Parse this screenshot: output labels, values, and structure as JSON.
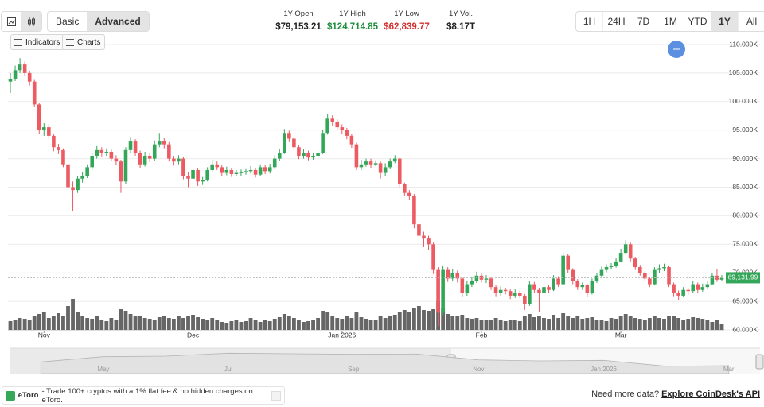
{
  "toolbar": {
    "modes": [
      "Basic",
      "Advanced"
    ],
    "active_mode": "Advanced",
    "buttons": [
      "Indicators",
      "Charts"
    ],
    "ranges": [
      "1H",
      "24H",
      "7D",
      "1M",
      "YTD",
      "1Y",
      "All"
    ],
    "active_range": "1Y"
  },
  "stats": [
    {
      "label": "1Y Open",
      "value": "$79,153.21",
      "color": "#222222"
    },
    {
      "label": "1Y High",
      "value": "$124,714.85",
      "color": "#1e8e3e"
    },
    {
      "label": "1Y Low",
      "value": "$62,839.77",
      "color": "#d32f2f"
    },
    {
      "label": "1Y Vol.",
      "value": "$8.17T",
      "color": "#222222"
    }
  ],
  "chart_data": {
    "type": "candlestick",
    "categories": [
      null,
      null,
      null,
      null,
      null,
      null,
      null,
      "Nov",
      null,
      null,
      null,
      null,
      null,
      null,
      null,
      null,
      null,
      null,
      null,
      null,
      null,
      null,
      null,
      null,
      null,
      null,
      null,
      null,
      null,
      null,
      null,
      null,
      null,
      null,
      null,
      null,
      null,
      null,
      "Dec",
      null,
      null,
      null,
      null,
      null,
      null,
      null,
      null,
      null,
      null,
      null,
      null,
      null,
      null,
      null,
      null,
      null,
      null,
      null,
      null,
      null,
      null,
      null,
      null,
      null,
      null,
      null,
      null,
      null,
      null,
      "Jan 2026",
      null,
      null,
      null,
      null,
      null,
      null,
      null,
      null,
      null,
      null,
      null,
      null,
      null,
      null,
      null,
      null,
      null,
      null,
      null,
      null,
      null,
      null,
      null,
      null,
      null,
      null,
      null,
      null,
      "Feb",
      null,
      null,
      null,
      null,
      null,
      null,
      null,
      null,
      null,
      null,
      null,
      null,
      null,
      null,
      null,
      null,
      null,
      null,
      null,
      null,
      null,
      null,
      null,
      null,
      null,
      null,
      null,
      null,
      "Mar",
      null,
      null,
      null,
      null,
      null,
      null,
      null,
      null,
      null,
      null,
      null,
      null,
      null,
      null,
      null,
      null,
      null,
      null,
      null,
      null,
      null
    ],
    "open": [
      103500,
      104000,
      105500,
      106500,
      105000,
      103500,
      99500,
      95000,
      95500,
      94000,
      92000,
      91500,
      89000,
      85000,
      84500,
      86500,
      87000,
      88500,
      90500,
      91500,
      91000,
      91200,
      90000,
      89500,
      86000,
      91500,
      93000,
      91000,
      89000,
      90500,
      90000,
      92500,
      93000,
      92500,
      90000,
      89500,
      90000,
      87000,
      86500,
      88000,
      86000,
      86300,
      88000,
      89000,
      88500,
      87500,
      88000,
      87300,
      87500,
      87600,
      87800,
      88000,
      87200,
      88500,
      87800,
      88500,
      90000,
      91000,
      94500,
      93500,
      92000,
      90500,
      91000,
      90200,
      90500,
      91000,
      94500,
      97000,
      96500,
      95500,
      95000,
      94000,
      92500,
      88500,
      89000,
      89500,
      89000,
      89200,
      87500,
      88500,
      89500,
      90000,
      85500,
      84000,
      83500,
      78500,
      76500,
      76000,
      75000,
      70500,
      63000,
      70500,
      69000,
      70000,
      69000,
      66500,
      68000,
      68500,
      69500,
      68800,
      69000,
      67500,
      66500,
      67000,
      66800,
      66000,
      66500,
      66000,
      64500,
      68000,
      67000,
      66500,
      67500,
      67000,
      69000,
      68000,
      73000,
      70500,
      68500,
      67500,
      67800,
      66500,
      68500,
      69500,
      70500,
      71000,
      71200,
      72000,
      73500,
      75000,
      72500,
      71000,
      70000,
      69000,
      68000,
      70500,
      70800,
      71000,
      68000,
      66500,
      66000,
      67000,
      66800,
      68000,
      67000,
      67500,
      68000,
      69500,
      68800
    ],
    "high": [
      105000,
      106300,
      107600,
      107000,
      105400,
      103800,
      99800,
      96200,
      96000,
      94400,
      92600,
      91800,
      89300,
      86000,
      87000,
      87600,
      89000,
      91000,
      92200,
      92000,
      91800,
      91600,
      90600,
      89800,
      92000,
      93800,
      93400,
      91400,
      91200,
      91000,
      93200,
      94500,
      93600,
      92900,
      90500,
      90600,
      90300,
      87600,
      88600,
      88400,
      86800,
      88500,
      89800,
      89500,
      88900,
      88600,
      88400,
      88000,
      88100,
      88300,
      88700,
      88400,
      89000,
      88900,
      89100,
      90600,
      91700,
      95200,
      94900,
      93900,
      92400,
      91600,
      91400,
      91000,
      91500,
      95000,
      97800,
      97600,
      96900,
      96000,
      95400,
      94400,
      92800,
      89800,
      90000,
      90000,
      89700,
      89500,
      89200,
      90000,
      90600,
      90300,
      85800,
      84500,
      83800,
      78900,
      77200,
      76500,
      75300,
      71000,
      71300,
      71000,
      70600,
      70400,
      69300,
      68600,
      69200,
      70200,
      69900,
      69600,
      69300,
      67800,
      67600,
      67400,
      67100,
      67100,
      66900,
      66300,
      68500,
      68400,
      67400,
      68000,
      67900,
      69600,
      69400,
      73600,
      73300,
      70800,
      68900,
      68300,
      68100,
      69000,
      70000,
      71100,
      71500,
      71700,
      72600,
      74200,
      75700,
      75300,
      72800,
      71400,
      70300,
      69300,
      71000,
      71500,
      71600,
      71300,
      68300,
      66900,
      67500,
      67400,
      68500,
      68300,
      68100,
      68600,
      70000,
      70600,
      69600
    ],
    "low": [
      101500,
      103600,
      105000,
      104500,
      102800,
      99000,
      94400,
      94000,
      93500,
      91300,
      90800,
      88500,
      84200,
      80800,
      84000,
      85800,
      86600,
      88000,
      90000,
      90400,
      90500,
      89600,
      88900,
      84000,
      85600,
      91000,
      90500,
      88400,
      88600,
      89400,
      89600,
      92000,
      91800,
      89500,
      88800,
      89000,
      86400,
      85000,
      86000,
      85200,
      85400,
      86000,
      87600,
      88000,
      87000,
      87100,
      86800,
      86900,
      87000,
      87200,
      87400,
      86700,
      86900,
      87300,
      87400,
      88200,
      89600,
      90800,
      92900,
      91400,
      89900,
      90000,
      89700,
      89800,
      90100,
      90800,
      94200,
      95800,
      95000,
      94300,
      93400,
      91900,
      88000,
      88000,
      88600,
      88400,
      88700,
      86500,
      87000,
      88200,
      89200,
      85000,
      83400,
      82800,
      77800,
      75800,
      74500,
      74000,
      69800,
      60700,
      62500,
      68400,
      68500,
      68300,
      65800,
      66000,
      67500,
      68200,
      68300,
      68200,
      67000,
      65900,
      66000,
      66200,
      65400,
      65600,
      65500,
      63500,
      64200,
      66500,
      63200,
      66100,
      66500,
      66800,
      67500,
      67800,
      70000,
      68000,
      67000,
      67000,
      65800,
      66200,
      68200,
      69200,
      70100,
      70600,
      70900,
      71800,
      73200,
      72000,
      70500,
      69500,
      68500,
      67500,
      67800,
      70000,
      70300,
      67500,
      65900,
      65200,
      65700,
      66200,
      66500,
      66400,
      66700,
      67200,
      67800,
      68400,
      68500
    ],
    "close": [
      104000,
      105500,
      106500,
      105000,
      103500,
      99500,
      95000,
      95500,
      94000,
      92000,
      91500,
      89000,
      85000,
      84500,
      86500,
      87000,
      88500,
      90500,
      91500,
      91000,
      91200,
      90000,
      89500,
      86000,
      91500,
      93000,
      91000,
      89000,
      90500,
      90000,
      92500,
      93000,
      92500,
      90000,
      89500,
      90000,
      87000,
      86500,
      88000,
      86000,
      86300,
      88000,
      89000,
      88500,
      87500,
      88000,
      87300,
      87500,
      87600,
      87800,
      88000,
      87200,
      88500,
      87800,
      88500,
      90000,
      91000,
      94500,
      93500,
      92000,
      90500,
      91000,
      90200,
      90500,
      91000,
      94500,
      97000,
      96500,
      95500,
      95000,
      94000,
      92500,
      88500,
      89000,
      89500,
      89000,
      89200,
      87500,
      88500,
      89500,
      90000,
      85500,
      84000,
      83500,
      78500,
      76500,
      76000,
      75000,
      70500,
      63000,
      70500,
      69000,
      70000,
      69000,
      66500,
      68000,
      68500,
      69500,
      68800,
      69000,
      67500,
      66500,
      67000,
      66800,
      66000,
      66500,
      66000,
      64500,
      68000,
      67000,
      66500,
      67500,
      67000,
      69000,
      68000,
      73000,
      70500,
      68500,
      67500,
      67800,
      66500,
      68500,
      69500,
      70500,
      71000,
      71200,
      72000,
      73500,
      75000,
      72500,
      71000,
      70000,
      69000,
      68000,
      70500,
      70800,
      71000,
      68000,
      66500,
      66000,
      67000,
      66800,
      68000,
      67000,
      67500,
      68000,
      69500,
      68800,
      69131.99
    ],
    "volume": [
      22,
      26,
      30,
      28,
      24,
      34,
      40,
      46,
      30,
      36,
      42,
      34,
      60,
      78,
      44,
      36,
      30,
      28,
      34,
      24,
      22,
      30,
      26,
      52,
      48,
      40,
      34,
      36,
      30,
      28,
      26,
      32,
      34,
      30,
      28,
      36,
      30,
      34,
      38,
      32,
      28,
      26,
      30,
      24,
      20,
      18,
      22,
      26,
      20,
      22,
      30,
      24,
      20,
      26,
      22,
      28,
      32,
      40,
      34,
      30,
      24,
      20,
      22,
      26,
      30,
      48,
      44,
      36,
      30,
      28,
      34,
      30,
      44,
      32,
      28,
      26,
      24,
      36,
      30,
      34,
      38,
      46,
      50,
      44,
      56,
      60,
      50,
      48,
      52,
      72,
      54,
      40,
      36,
      34,
      38,
      30,
      28,
      30,
      24,
      26,
      26,
      30,
      24,
      22,
      24,
      26,
      22,
      36,
      40,
      32,
      34,
      30,
      28,
      38,
      30,
      42,
      36,
      30,
      34,
      28,
      30,
      32,
      26,
      24,
      22,
      30,
      28,
      34,
      40,
      36,
      30,
      28,
      24,
      30,
      34,
      30,
      28,
      36,
      34,
      30,
      26,
      28,
      32,
      30,
      28,
      24,
      20,
      26,
      14
    ],
    "volume_lim": [
      0,
      160
    ],
    "up_color": "#34a65a",
    "down_color": "#ec5a62",
    "volume_color": "#666666",
    "ylim": [
      60000,
      110000
    ],
    "yticks": [
      {
        "value": 60000,
        "label": "60.000K"
      },
      {
        "value": 65000,
        "label": "65.000K"
      },
      {
        "value": 70000,
        "label": "70.000K"
      },
      {
        "value": 75000,
        "label": "75.000K"
      },
      {
        "value": 80000,
        "label": "80.000K"
      },
      {
        "value": 85000,
        "label": "85.000K"
      },
      {
        "value": 90000,
        "label": "90.000K"
      },
      {
        "value": 95000,
        "label": "95.000K"
      },
      {
        "value": 100000,
        "label": "100.000K"
      },
      {
        "value": 105000,
        "label": "105.000K"
      },
      {
        "value": 110000,
        "label": "110.000K"
      }
    ],
    "grid": true,
    "last_price": {
      "value": 69131.99,
      "label": "69,131.99"
    },
    "navigator": {
      "categories": [
        null,
        "May",
        null,
        "Jul",
        null,
        "Sep",
        null,
        "Nov",
        null,
        "Jan 2026",
        null,
        "Mar"
      ],
      "values": [
        84000,
        104000,
        106000,
        117000,
        115000,
        113000,
        114000,
        92000,
        88000,
        90000,
        68000,
        70000
      ],
      "ylim": [
        40000,
        130000
      ]
    }
  },
  "footer": {
    "ad_brand": "eToro",
    "ad_text": "- Trade 100+ cryptos with a 1% flat fee & no hidden charges on eToro.",
    "cta": "Need more data?",
    "link": "Explore CoinDesk's API"
  }
}
